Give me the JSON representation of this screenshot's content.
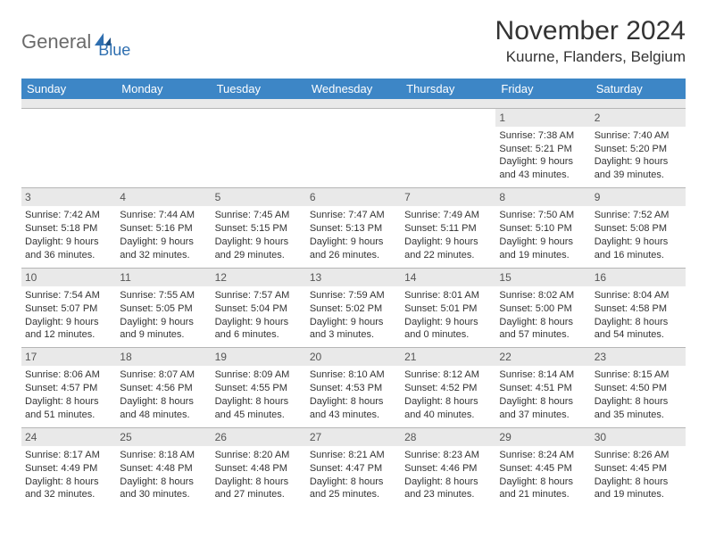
{
  "brand": {
    "part1": "General",
    "part2": "Blue"
  },
  "title": "November 2024",
  "location": "Kuurne, Flanders, Belgium",
  "colors": {
    "header_bg": "#3d86c6",
    "header_text": "#ffffff",
    "daynum_bg": "#e9e9e9",
    "border": "#b6b6b6",
    "text": "#333333",
    "logo_gray": "#6b6b6b",
    "logo_blue": "#2f6fb0"
  },
  "day_headers": [
    "Sunday",
    "Monday",
    "Tuesday",
    "Wednesday",
    "Thursday",
    "Friday",
    "Saturday"
  ],
  "labels": {
    "sunrise": "Sunrise:",
    "sunset": "Sunset:",
    "daylight": "Daylight:"
  },
  "weeks": [
    [
      {
        "n": "",
        "sr": "",
        "ss": "",
        "dl": ""
      },
      {
        "n": "",
        "sr": "",
        "ss": "",
        "dl": ""
      },
      {
        "n": "",
        "sr": "",
        "ss": "",
        "dl": ""
      },
      {
        "n": "",
        "sr": "",
        "ss": "",
        "dl": ""
      },
      {
        "n": "",
        "sr": "",
        "ss": "",
        "dl": ""
      },
      {
        "n": "1",
        "sr": "7:38 AM",
        "ss": "5:21 PM",
        "dl": "9 hours and 43 minutes."
      },
      {
        "n": "2",
        "sr": "7:40 AM",
        "ss": "5:20 PM",
        "dl": "9 hours and 39 minutes."
      }
    ],
    [
      {
        "n": "3",
        "sr": "7:42 AM",
        "ss": "5:18 PM",
        "dl": "9 hours and 36 minutes."
      },
      {
        "n": "4",
        "sr": "7:44 AM",
        "ss": "5:16 PM",
        "dl": "9 hours and 32 minutes."
      },
      {
        "n": "5",
        "sr": "7:45 AM",
        "ss": "5:15 PM",
        "dl": "9 hours and 29 minutes."
      },
      {
        "n": "6",
        "sr": "7:47 AM",
        "ss": "5:13 PM",
        "dl": "9 hours and 26 minutes."
      },
      {
        "n": "7",
        "sr": "7:49 AM",
        "ss": "5:11 PM",
        "dl": "9 hours and 22 minutes."
      },
      {
        "n": "8",
        "sr": "7:50 AM",
        "ss": "5:10 PM",
        "dl": "9 hours and 19 minutes."
      },
      {
        "n": "9",
        "sr": "7:52 AM",
        "ss": "5:08 PM",
        "dl": "9 hours and 16 minutes."
      }
    ],
    [
      {
        "n": "10",
        "sr": "7:54 AM",
        "ss": "5:07 PM",
        "dl": "9 hours and 12 minutes."
      },
      {
        "n": "11",
        "sr": "7:55 AM",
        "ss": "5:05 PM",
        "dl": "9 hours and 9 minutes."
      },
      {
        "n": "12",
        "sr": "7:57 AM",
        "ss": "5:04 PM",
        "dl": "9 hours and 6 minutes."
      },
      {
        "n": "13",
        "sr": "7:59 AM",
        "ss": "5:02 PM",
        "dl": "9 hours and 3 minutes."
      },
      {
        "n": "14",
        "sr": "8:01 AM",
        "ss": "5:01 PM",
        "dl": "9 hours and 0 minutes."
      },
      {
        "n": "15",
        "sr": "8:02 AM",
        "ss": "5:00 PM",
        "dl": "8 hours and 57 minutes."
      },
      {
        "n": "16",
        "sr": "8:04 AM",
        "ss": "4:58 PM",
        "dl": "8 hours and 54 minutes."
      }
    ],
    [
      {
        "n": "17",
        "sr": "8:06 AM",
        "ss": "4:57 PM",
        "dl": "8 hours and 51 minutes."
      },
      {
        "n": "18",
        "sr": "8:07 AM",
        "ss": "4:56 PM",
        "dl": "8 hours and 48 minutes."
      },
      {
        "n": "19",
        "sr": "8:09 AM",
        "ss": "4:55 PM",
        "dl": "8 hours and 45 minutes."
      },
      {
        "n": "20",
        "sr": "8:10 AM",
        "ss": "4:53 PM",
        "dl": "8 hours and 43 minutes."
      },
      {
        "n": "21",
        "sr": "8:12 AM",
        "ss": "4:52 PM",
        "dl": "8 hours and 40 minutes."
      },
      {
        "n": "22",
        "sr": "8:14 AM",
        "ss": "4:51 PM",
        "dl": "8 hours and 37 minutes."
      },
      {
        "n": "23",
        "sr": "8:15 AM",
        "ss": "4:50 PM",
        "dl": "8 hours and 35 minutes."
      }
    ],
    [
      {
        "n": "24",
        "sr": "8:17 AM",
        "ss": "4:49 PM",
        "dl": "8 hours and 32 minutes."
      },
      {
        "n": "25",
        "sr": "8:18 AM",
        "ss": "4:48 PM",
        "dl": "8 hours and 30 minutes."
      },
      {
        "n": "26",
        "sr": "8:20 AM",
        "ss": "4:48 PM",
        "dl": "8 hours and 27 minutes."
      },
      {
        "n": "27",
        "sr": "8:21 AM",
        "ss": "4:47 PM",
        "dl": "8 hours and 25 minutes."
      },
      {
        "n": "28",
        "sr": "8:23 AM",
        "ss": "4:46 PM",
        "dl": "8 hours and 23 minutes."
      },
      {
        "n": "29",
        "sr": "8:24 AM",
        "ss": "4:45 PM",
        "dl": "8 hours and 21 minutes."
      },
      {
        "n": "30",
        "sr": "8:26 AM",
        "ss": "4:45 PM",
        "dl": "8 hours and 19 minutes."
      }
    ]
  ]
}
